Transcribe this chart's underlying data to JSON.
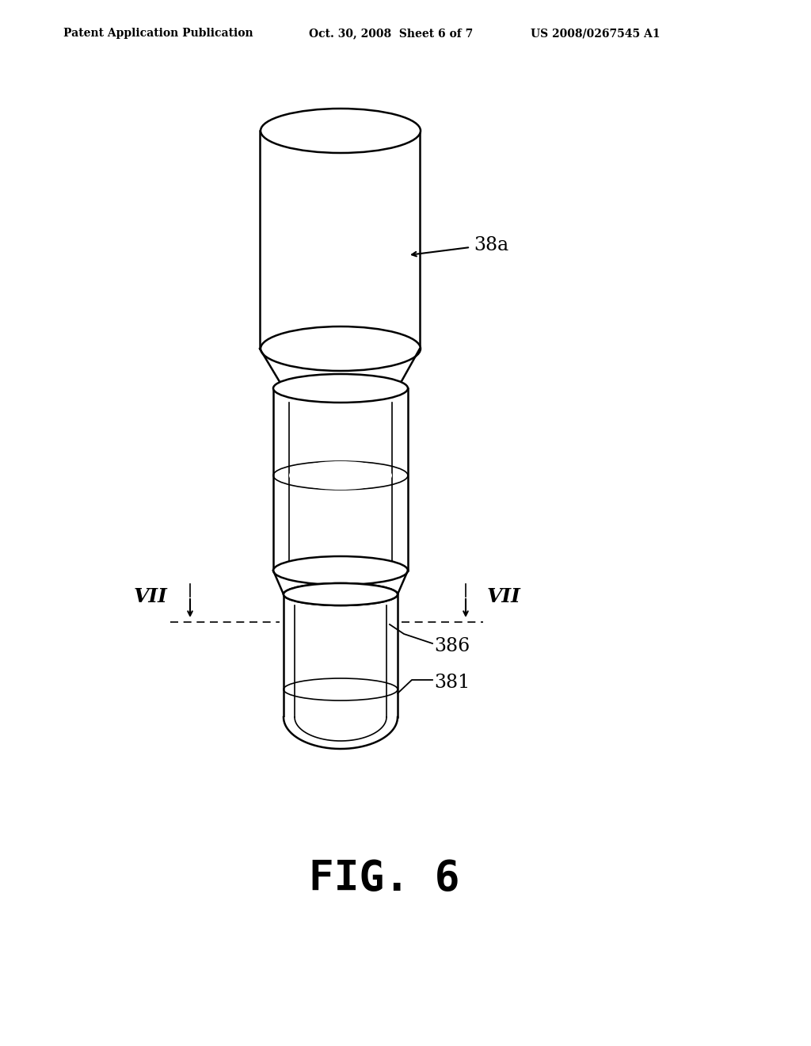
{
  "bg_color": "#ffffff",
  "line_color": "#000000",
  "header_left": "Patent Application Publication",
  "header_mid": "Oct. 30, 2008  Sheet 6 of 7",
  "header_right": "US 2008/0267545 A1",
  "fig_label": "FIG. 6",
  "label_38a": "38a",
  "label_386": "386",
  "label_381": "381",
  "label_VII_left": "VII",
  "label_VII_right": "VII",
  "lw_main": 1.8,
  "lw_thin": 1.2
}
